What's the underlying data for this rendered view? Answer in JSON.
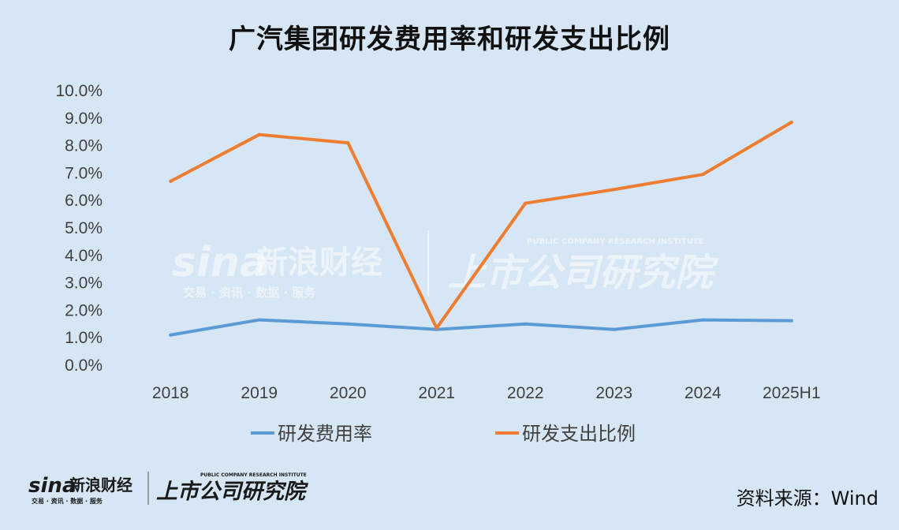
{
  "chart_data": {
    "type": "line",
    "title": "广汽集团研发费用率和研发支出比例",
    "categories": [
      "2018",
      "2019",
      "2020",
      "2021",
      "2022",
      "2023",
      "2024",
      "2025H1"
    ],
    "series": [
      {
        "name": "研发费用率",
        "color": "#5b9bd5",
        "values": [
          1.1,
          1.65,
          1.5,
          1.3,
          1.5,
          1.3,
          1.65,
          1.62
        ]
      },
      {
        "name": "研发支出比例",
        "color": "#ed7d31",
        "values": [
          6.7,
          8.4,
          8.1,
          1.35,
          5.9,
          6.4,
          6.95,
          8.85
        ]
      }
    ],
    "y_ticks": [
      "0.0%",
      "1.0%",
      "2.0%",
      "3.0%",
      "4.0%",
      "5.0%",
      "6.0%",
      "7.0%",
      "8.0%",
      "9.0%",
      "10.0%"
    ],
    "ylim": [
      0,
      10
    ],
    "grid": false,
    "legend_position": "bottom"
  },
  "watermark": {
    "brand": "sina",
    "name": "新浪财经",
    "tagline": "交易 · 资讯 · 数据 · 服务",
    "institute": "上市公司研究院",
    "institute_en": "PUBLIC COMPANY RESEARCH INSTITUTE"
  },
  "footer": {
    "source": "资料来源：Wind"
  }
}
